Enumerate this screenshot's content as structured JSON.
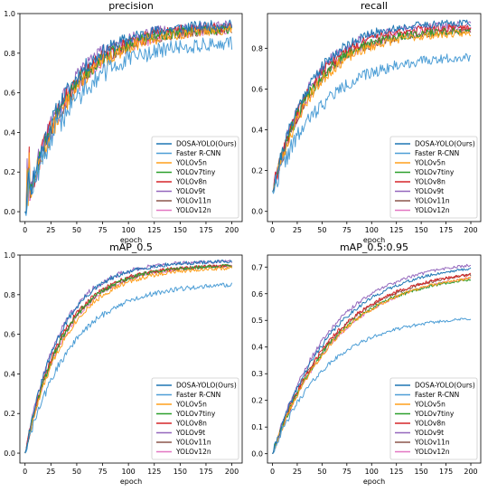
{
  "chart_data": [
    {
      "type": "line",
      "title": "precision",
      "xlabel": "epoch",
      "ylabel": "",
      "xlim": [
        -5,
        210
      ],
      "ylim": [
        -0.05,
        1.0
      ],
      "xticks": [
        0,
        25,
        50,
        75,
        100,
        125,
        150,
        175,
        200
      ],
      "yticks": [
        0.0,
        0.2,
        0.4,
        0.6,
        0.8,
        1.0
      ],
      "legend_position": "lower-right",
      "start_value": 0.0,
      "series": [
        {
          "name": "DOSA-YOLO(Ours)",
          "color": "#1f77b4",
          "final": 0.95,
          "tau": 40,
          "noise": 0.06,
          "seed": 11
        },
        {
          "name": "Faster R-CNN",
          "color": "#4d9ed6",
          "final": 0.86,
          "tau": 45,
          "noise": 0.08,
          "seed": 12
        },
        {
          "name": "YOLOv5n",
          "color": "#ff9f1c",
          "final": 0.93,
          "tau": 45,
          "noise": 0.06,
          "seed": 13
        },
        {
          "name": "YOLOv7tiny",
          "color": "#2ca02c",
          "final": 0.93,
          "tau": 42,
          "noise": 0.06,
          "seed": 14
        },
        {
          "name": "YOLOv8n",
          "color": "#d62728",
          "final": 0.94,
          "tau": 42,
          "noise": 0.06,
          "seed": 15
        },
        {
          "name": "YOLOv9t",
          "color": "#9467bd",
          "final": 0.95,
          "tau": 40,
          "noise": 0.06,
          "seed": 16
        },
        {
          "name": "YOLOv11n",
          "color": "#8c564b",
          "final": 0.93,
          "tau": 43,
          "noise": 0.06,
          "seed": 17
        },
        {
          "name": "YOLOv12n",
          "color": "#e377c2",
          "final": 0.93,
          "tau": 44,
          "noise": 0.06,
          "seed": 18
        }
      ]
    },
    {
      "type": "line",
      "title": "recall",
      "xlabel": "epoch",
      "ylabel": "",
      "xlim": [
        -5,
        210
      ],
      "ylim": [
        -0.05,
        0.97
      ],
      "xticks": [
        0,
        25,
        50,
        75,
        100,
        125,
        150,
        175,
        200
      ],
      "yticks": [
        0.0,
        0.2,
        0.4,
        0.6,
        0.8
      ],
      "legend_position": "lower-right",
      "start_value": 0.1,
      "series": [
        {
          "name": "DOSA-YOLO(Ours)",
          "color": "#1f77b4",
          "final": 0.93,
          "tau": 38,
          "noise": 0.04,
          "seed": 21
        },
        {
          "name": "Faster R-CNN",
          "color": "#4d9ed6",
          "final": 0.77,
          "tau": 50,
          "noise": 0.05,
          "seed": 22
        },
        {
          "name": "YOLOv5n",
          "color": "#ff9f1c",
          "final": 0.88,
          "tau": 42,
          "noise": 0.04,
          "seed": 23
        },
        {
          "name": "YOLOv7tiny",
          "color": "#2ca02c",
          "final": 0.89,
          "tau": 40,
          "noise": 0.04,
          "seed": 24
        },
        {
          "name": "YOLOv8n",
          "color": "#d62728",
          "final": 0.91,
          "tau": 40,
          "noise": 0.04,
          "seed": 25
        },
        {
          "name": "YOLOv9t",
          "color": "#9467bd",
          "final": 0.92,
          "tau": 38,
          "noise": 0.04,
          "seed": 26
        },
        {
          "name": "YOLOv11n",
          "color": "#8c564b",
          "final": 0.89,
          "tau": 41,
          "noise": 0.04,
          "seed": 27
        },
        {
          "name": "YOLOv12n",
          "color": "#e377c2",
          "final": 0.9,
          "tau": 42,
          "noise": 0.04,
          "seed": 28
        }
      ]
    },
    {
      "type": "line",
      "title": "mAP_0.5",
      "xlabel": "epoch",
      "ylabel": "",
      "xlim": [
        -5,
        210
      ],
      "ylim": [
        -0.05,
        1.0
      ],
      "xticks": [
        0,
        25,
        50,
        75,
        100,
        125,
        150,
        175,
        200
      ],
      "yticks": [
        0.0,
        0.2,
        0.4,
        0.6,
        0.8,
        1.0
      ],
      "legend_position": "lower-right",
      "start_value": 0.0,
      "series": [
        {
          "name": "DOSA-YOLO(Ours)",
          "color": "#1f77b4",
          "final": 0.97,
          "tau": 35,
          "noise": 0.02,
          "seed": 31
        },
        {
          "name": "Faster R-CNN",
          "color": "#4d9ed6",
          "final": 0.86,
          "tau": 45,
          "noise": 0.025,
          "seed": 32
        },
        {
          "name": "YOLOv5n",
          "color": "#ff9f1c",
          "final": 0.94,
          "tau": 40,
          "noise": 0.02,
          "seed": 33
        },
        {
          "name": "YOLOv7tiny",
          "color": "#2ca02c",
          "final": 0.95,
          "tau": 38,
          "noise": 0.02,
          "seed": 34
        },
        {
          "name": "YOLOv8n",
          "color": "#d62728",
          "final": 0.95,
          "tau": 37,
          "noise": 0.02,
          "seed": 35
        },
        {
          "name": "YOLOv9t",
          "color": "#9467bd",
          "final": 0.97,
          "tau": 34,
          "noise": 0.02,
          "seed": 36
        },
        {
          "name": "YOLOv11n",
          "color": "#8c564b",
          "final": 0.95,
          "tau": 38,
          "noise": 0.02,
          "seed": 37
        },
        {
          "name": "YOLOv12n",
          "color": "#e377c2",
          "final": 0.95,
          "tau": 39,
          "noise": 0.02,
          "seed": 38
        }
      ]
    },
    {
      "type": "line",
      "title": "mAP_0.5:0.95",
      "xlabel": "epoch",
      "ylabel": "",
      "xlim": [
        -5,
        210
      ],
      "ylim": [
        -0.035,
        0.745
      ],
      "xticks": [
        0,
        25,
        50,
        75,
        100,
        125,
        150,
        175,
        200
      ],
      "yticks": [
        0.0,
        0.1,
        0.2,
        0.3,
        0.4,
        0.5,
        0.6,
        0.7
      ],
      "legend_position": "lower-right",
      "start_value": 0.0,
      "series": [
        {
          "name": "DOSA-YOLO(Ours)",
          "color": "#1f77b4",
          "final": 0.72,
          "tau": 60,
          "noise": 0.012,
          "seed": 41
        },
        {
          "name": "Faster R-CNN",
          "color": "#4d9ed6",
          "final": 0.52,
          "tau": 55,
          "noise": 0.012,
          "seed": 42
        },
        {
          "name": "YOLOv5n",
          "color": "#ff9f1c",
          "final": 0.69,
          "tau": 65,
          "noise": 0.012,
          "seed": 43
        },
        {
          "name": "YOLOv7tiny",
          "color": "#2ca02c",
          "final": 0.68,
          "tau": 62,
          "noise": 0.012,
          "seed": 44
        },
        {
          "name": "YOLOv8n",
          "color": "#d62728",
          "final": 0.7,
          "tau": 62,
          "noise": 0.012,
          "seed": 45
        },
        {
          "name": "YOLOv9t",
          "color": "#9467bd",
          "final": 0.73,
          "tau": 58,
          "noise": 0.012,
          "seed": 46
        },
        {
          "name": "YOLOv11n",
          "color": "#8c564b",
          "final": 0.7,
          "tau": 63,
          "noise": 0.012,
          "seed": 47
        },
        {
          "name": "YOLOv12n",
          "color": "#e377c2",
          "final": 0.69,
          "tau": 65,
          "noise": 0.012,
          "seed": 48
        }
      ]
    }
  ]
}
